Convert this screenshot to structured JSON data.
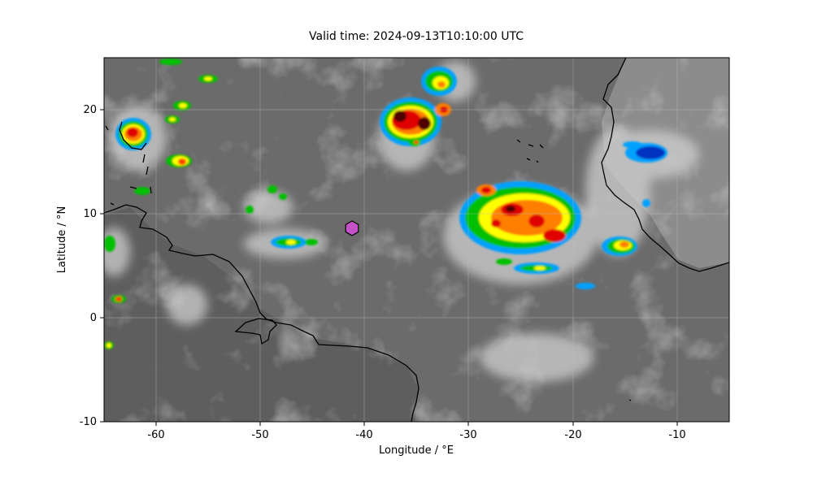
{
  "figure": {
    "title": "Valid time: 2024-09-13T10:10:00 UTC",
    "xlabel": "Longitude / °E",
    "ylabel": "Latitude / °N"
  },
  "chart_data": {
    "type": "map",
    "title": "Valid time: 2024-09-13T10:10:00 UTC",
    "xlabel": "Longitude / °E",
    "ylabel": "Latitude / °N",
    "xlim": [
      -65,
      -5
    ],
    "ylim": [
      -10,
      25
    ],
    "xticks": [
      -60,
      -50,
      -40,
      -30,
      -20,
      -10
    ],
    "yticks": [
      -10,
      0,
      10,
      20
    ],
    "grid": true,
    "background": "infrared satellite imagery, grayscale with color-enhanced cold cloud tops",
    "colors": {
      "ocean_gray": "#6b6b6b",
      "coastline": "#000000",
      "marker_fill": "#c552c8",
      "cold_cloud_scale": [
        "#00a0ff",
        "#00c000",
        "#ffff00",
        "#ff8000",
        "#e00000",
        "#500000"
      ]
    },
    "marker": {
      "symbol": "hexagon",
      "lon": -41.2,
      "lat": 8.6,
      "color": "#c552c8"
    },
    "convective_clusters": [
      {
        "lon": -61.5,
        "lat": 17.5,
        "intensity": "high"
      },
      {
        "lon": -57.5,
        "lat": 14.8,
        "intensity": "medium"
      },
      {
        "lon": -57.8,
        "lat": 20.3,
        "intensity": "medium"
      },
      {
        "lon": -35.5,
        "lat": 19.5,
        "intensity": "very high"
      },
      {
        "lon": -32.5,
        "lat": 22.5,
        "intensity": "medium"
      },
      {
        "lon": -25.0,
        "lat": 9.5,
        "intensity": "very high"
      },
      {
        "lon": -22.0,
        "lat": 8.0,
        "intensity": "high"
      },
      {
        "lon": -14.5,
        "lat": 7.0,
        "intensity": "high"
      },
      {
        "lon": -13.0,
        "lat": 15.5,
        "intensity": "medium"
      },
      {
        "lon": -46.5,
        "lat": 7.0,
        "intensity": "low"
      }
    ]
  }
}
